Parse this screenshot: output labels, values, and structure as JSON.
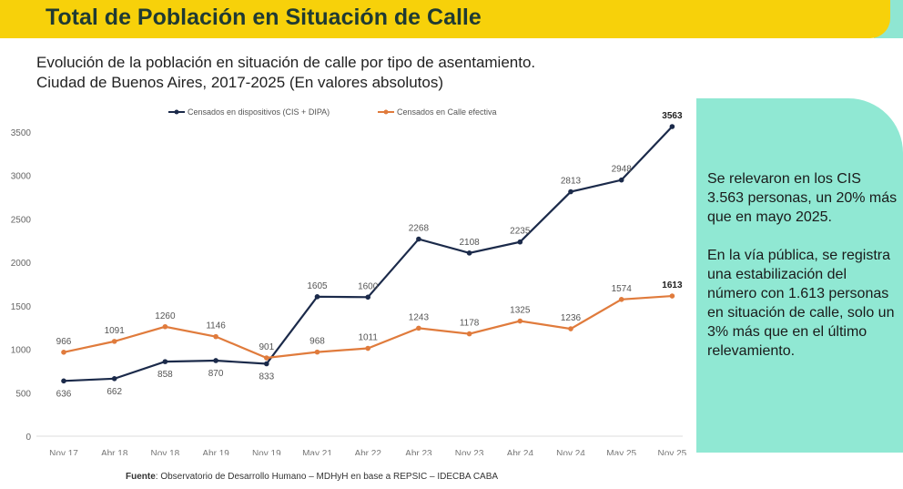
{
  "header": {
    "title": "Total de Población en Situación de Calle"
  },
  "subtitle": [
    "Evolución de la población en situación de calle por tipo de asentamiento.",
    "Ciudad de Buenos Aires, 2017-2025 (En valores  absolutos)"
  ],
  "panel": {
    "p1": "Se relevaron en los CIS 3.563 personas, un 20% más que en mayo 2025.",
    "p2": "En la vía pública, se registra una estabilización del número con 1.613 personas en situación de calle, solo un 3% más que en el último relevamiento."
  },
  "source": {
    "label": "Fuente",
    "text": ": Observatorio de Desarrollo Humano – MDHyH en base a REPSIC – IDECBA CABA"
  },
  "colors": {
    "header": "#f7d10a",
    "panel": "#90e8d3",
    "series1": "#1b2a4a",
    "series2": "#e07b3c"
  },
  "chart_data": {
    "type": "line",
    "categories": [
      "Nov 17",
      "Abr 18",
      "Nov 18",
      "Abr 19",
      "Nov 19",
      "May 21",
      "Abr 22",
      "Abr 23",
      "Nov 23",
      "Abr 24",
      "Nov 24",
      "May 25",
      "Nov 25"
    ],
    "series": [
      {
        "name": "Censados en dispositivos (CIS + DIPA)",
        "color": "#1b2a4a",
        "values": [
          636,
          662,
          858,
          870,
          833,
          1605,
          1600,
          2268,
          2108,
          2235,
          2813,
          2948,
          3563
        ]
      },
      {
        "name": "Censados en Calle efectiva",
        "color": "#e07b3c",
        "values": [
          966,
          1091,
          1260,
          1146,
          901,
          968,
          1011,
          1243,
          1178,
          1325,
          1236,
          1574,
          1613
        ]
      }
    ],
    "yticks": [
      0,
      500,
      1000,
      1500,
      2000,
      2500,
      3000,
      3500
    ],
    "ylim": [
      0,
      3500
    ],
    "grid": false,
    "legend": "top"
  }
}
